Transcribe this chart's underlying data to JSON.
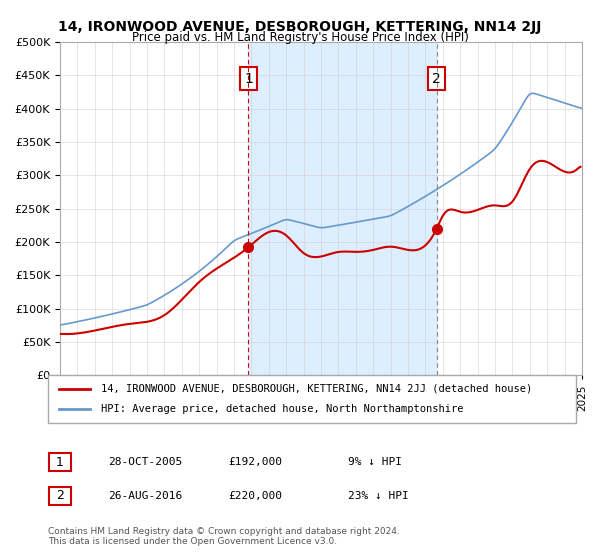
{
  "title": "14, IRONWOOD AVENUE, DESBOROUGH, KETTERING, NN14 2JJ",
  "subtitle": "Price paid vs. HM Land Registry's House Price Index (HPI)",
  "legend_line1": "14, IRONWOOD AVENUE, DESBOROUGH, KETTERING, NN14 2JJ (detached house)",
  "legend_line2": "HPI: Average price, detached house, North Northamptonshire",
  "sale1_date": "28-OCT-2005",
  "sale1_price": "£192,000",
  "sale1_hpi": "9% ↓ HPI",
  "sale1_year": 2005.83,
  "sale2_date": "26-AUG-2016",
  "sale2_price": "£220,000",
  "sale2_hpi": "23% ↓ HPI",
  "sale2_year": 2016.65,
  "copyright": "Contains HM Land Registry data © Crown copyright and database right 2024.\nThis data is licensed under the Open Government Licence v3.0.",
  "sale1_price_val": 192000,
  "sale2_price_val": 220000,
  "property_color": "#cc0000",
  "hpi_color": "#6699cc",
  "shaded_color": "#ddeeff",
  "ylim_min": 0,
  "ylim_max": 500000,
  "xlim_min": 1995,
  "xlim_max": 2025
}
